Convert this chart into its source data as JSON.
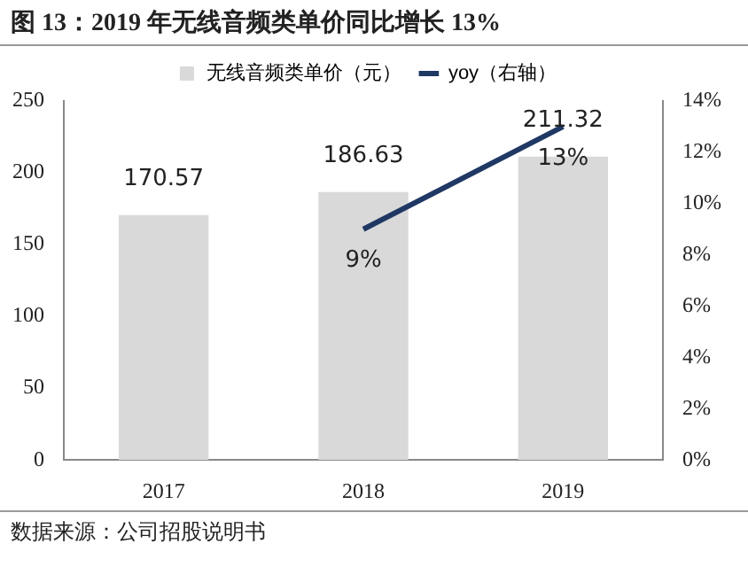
{
  "chart_data": {
    "type": "bar",
    "title": "图 13：2019 年无线音频类单价同比增长 13%",
    "categories": [
      "2017",
      "2018",
      "2019"
    ],
    "series": [
      {
        "name": "无线音频类单价（元）",
        "color": "#d9d9d9",
        "values": [
          170.57,
          186.63,
          211.32
        ],
        "value_labels": [
          "170.57",
          "186.63",
          "211.32"
        ]
      },
      {
        "name": "yoy（右轴）",
        "type": "line",
        "axis": "y2",
        "color": "#1f3864",
        "values": [
          null,
          9,
          13
        ],
        "value_labels": [
          null,
          "9%",
          "13%"
        ]
      }
    ],
    "ylim": [
      0,
      250
    ],
    "yticks": [
      0,
      50,
      100,
      150,
      200,
      250
    ],
    "y2lim": [
      0,
      14
    ],
    "y2ticks": [
      {
        "value": 0,
        "label": "0%"
      },
      {
        "value": 2,
        "label": "2%"
      },
      {
        "value": 4,
        "label": "4%"
      },
      {
        "value": 6,
        "label": "6%"
      },
      {
        "value": 8,
        "label": "8%"
      },
      {
        "value": 10,
        "label": "10%"
      },
      {
        "value": 12,
        "label": "12%"
      },
      {
        "value": 14,
        "label": "14%"
      }
    ],
    "grid": false,
    "legend": "top",
    "marker": "none",
    "annotations": [
      "数据来源：公司招股说明书"
    ]
  }
}
